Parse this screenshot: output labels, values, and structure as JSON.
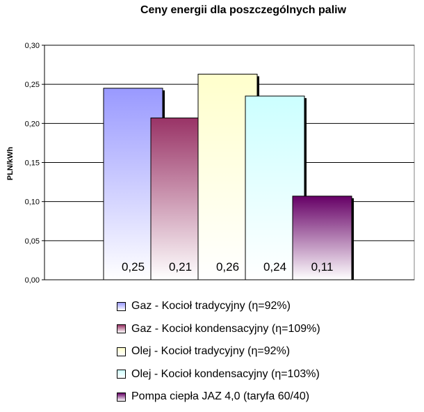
{
  "chart_data": {
    "type": "bar",
    "title": "Ceny energii dla poszczególnych paliw",
    "ylabel": "PLN/kWh",
    "xlabel": "",
    "ylim": [
      0,
      0.3
    ],
    "yticks": [
      "0,00",
      "0,05",
      "0,10",
      "0,15",
      "0,20",
      "0,25",
      "0,30"
    ],
    "grid": true,
    "legend_position": "bottom",
    "series": [
      {
        "name": "Gaz - Kocioł tradycyjny (η=92%)",
        "value": 0.245,
        "label": "0,25",
        "color_top": "#9999ff",
        "color_bottom": "#ffffff"
      },
      {
        "name": "Gaz - Kocioł kondensacyjny (η=109%)",
        "value": 0.207,
        "label": "0,21",
        "color_top": "#993366",
        "color_bottom": "#ffffff"
      },
      {
        "name": "Olej - Kocioł tradycyjny (η=92%)",
        "value": 0.263,
        "label": "0,26",
        "color_top": "#ffffcc",
        "color_bottom": "#ffffff"
      },
      {
        "name": "Olej - Kocioł kondensacyjny (η=103%)",
        "value": 0.235,
        "label": "0,24",
        "color_top": "#ccffff",
        "color_bottom": "#ffffff"
      },
      {
        "name": "Pompa ciepła JAZ 4,0 (taryfa 60/40)",
        "value": 0.107,
        "label": "0,11",
        "color_top": "#660066",
        "color_bottom": "#ffffff"
      }
    ]
  }
}
